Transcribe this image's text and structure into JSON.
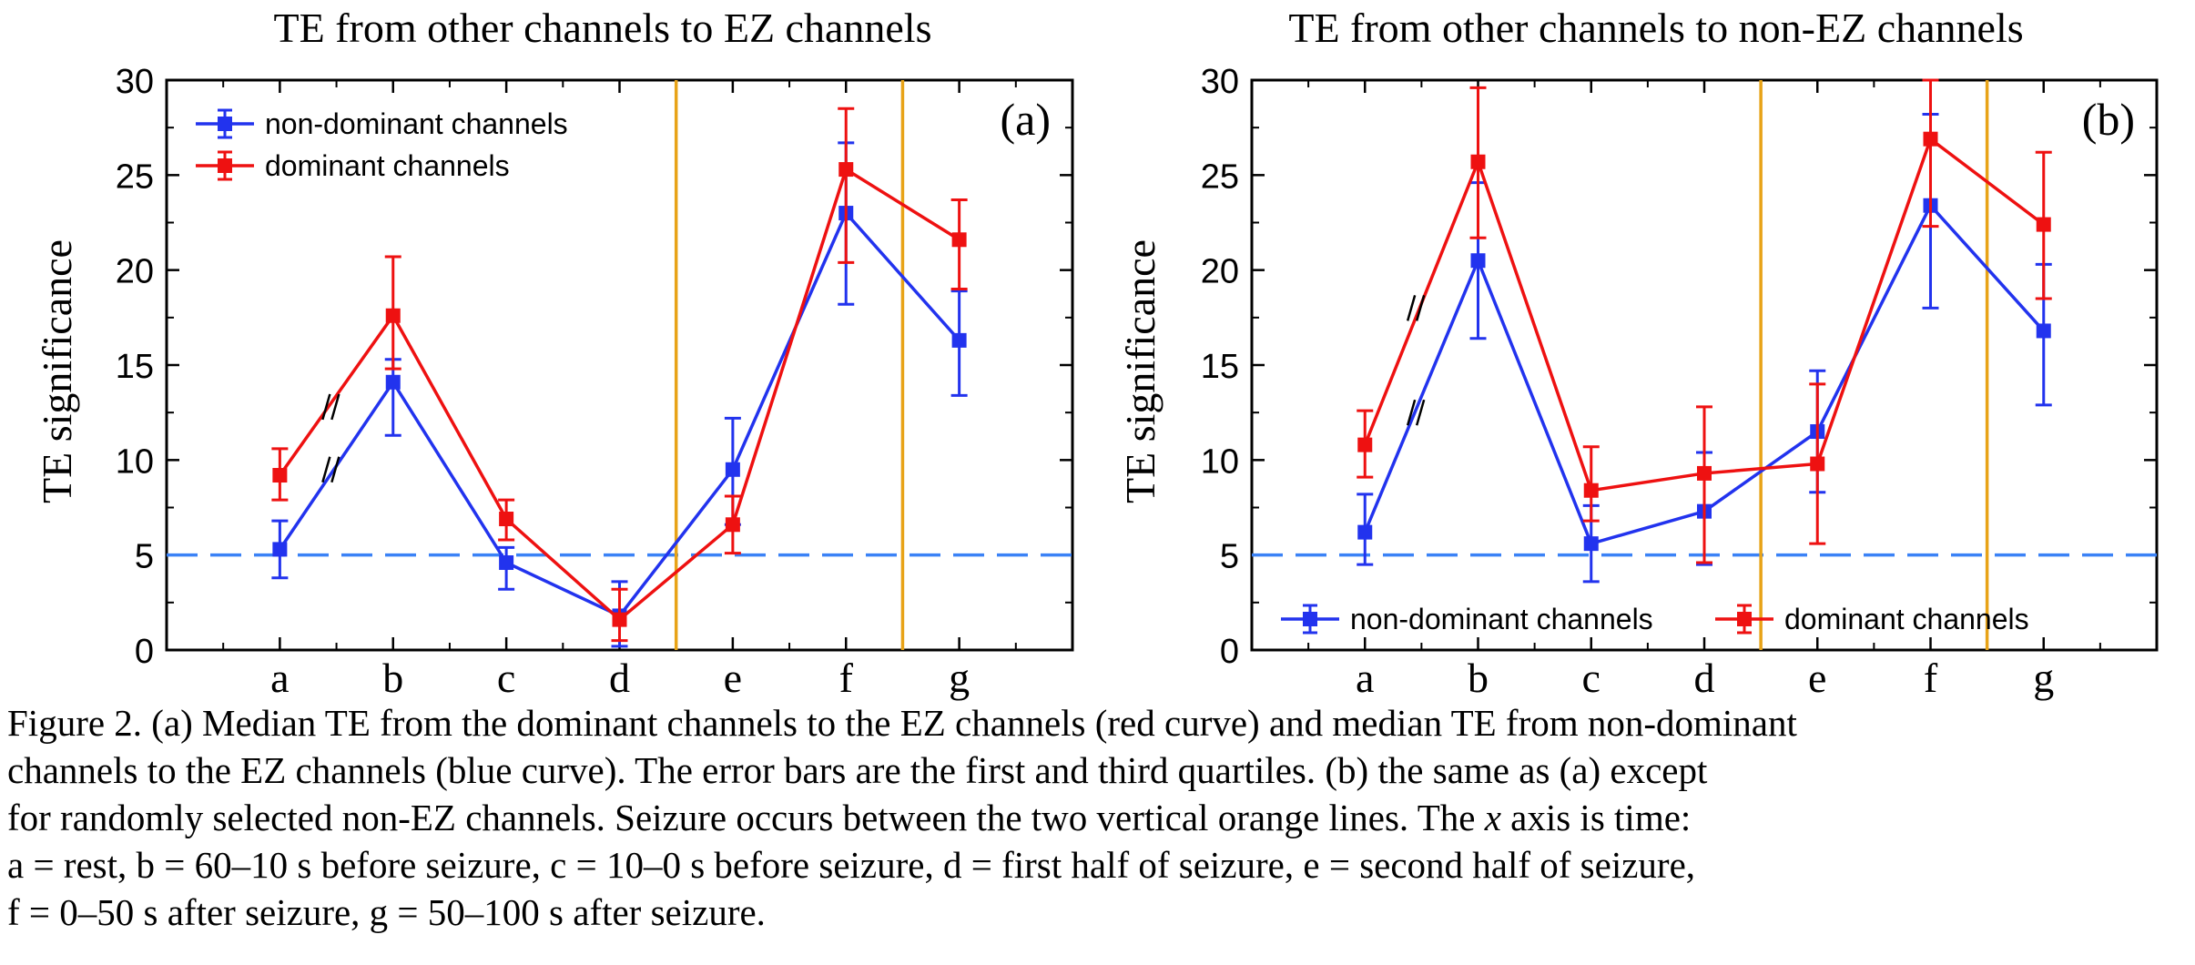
{
  "chart_data": [
    {
      "type": "line",
      "title": "TE from other channels to EZ channels",
      "panel_label": "(a)",
      "xlabel": "",
      "ylabel": "TE significance",
      "categories": [
        "a",
        "b",
        "c",
        "d",
        "e",
        "f",
        "g"
      ],
      "ylim": [
        0,
        30
      ],
      "yticks": [
        0,
        5,
        10,
        15,
        20,
        25,
        30
      ],
      "threshold": 5,
      "seizure_boundaries": [
        3.5,
        5.5
      ],
      "legend_position": "top-left",
      "legend_layout": "vertical",
      "break_marks": {
        "between_x": [
          1,
          2
        ],
        "series_y": [
          12.8,
          9.5
        ]
      },
      "series": [
        {
          "name": "dominant channels",
          "color": "#ee1111",
          "values": [
            9.2,
            17.6,
            6.9,
            1.6,
            6.6,
            25.3,
            21.6
          ],
          "q1": [
            7.9,
            14.8,
            5.8,
            0.5,
            5.1,
            20.4,
            19.0
          ],
          "q3": [
            10.6,
            20.7,
            7.9,
            3.2,
            8.1,
            28.5,
            23.7
          ]
        },
        {
          "name": "non-dominant channels",
          "color": "#2233ee",
          "values": [
            5.3,
            14.1,
            4.6,
            1.8,
            9.5,
            23.0,
            16.3
          ],
          "q1": [
            3.8,
            11.3,
            3.2,
            0.2,
            6.6,
            18.2,
            13.4
          ],
          "q3": [
            6.8,
            15.3,
            5.4,
            3.6,
            12.2,
            26.7,
            18.9
          ]
        }
      ]
    },
    {
      "type": "line",
      "title": "TE from other channels to non-EZ channels",
      "panel_label": "(b)",
      "xlabel": "",
      "ylabel": "TE significance",
      "categories": [
        "a",
        "b",
        "c",
        "d",
        "e",
        "f",
        "g"
      ],
      "ylim": [
        0,
        30
      ],
      "yticks": [
        0,
        5,
        10,
        15,
        20,
        25,
        30
      ],
      "threshold": 5,
      "seizure_boundaries": [
        3.5,
        5.5
      ],
      "legend_position": "bottom",
      "legend_layout": "horizontal",
      "break_marks": {
        "between_x": [
          1,
          2
        ],
        "series_y": [
          18.0,
          12.5
        ]
      },
      "series": [
        {
          "name": "dominant channels",
          "color": "#ee1111",
          "values": [
            10.8,
            25.7,
            8.4,
            9.3,
            9.8,
            26.9,
            22.4
          ],
          "q1": [
            9.1,
            21.7,
            6.8,
            4.6,
            5.6,
            22.3,
            18.5
          ],
          "q3": [
            12.6,
            29.6,
            10.7,
            12.8,
            14.0,
            30.0,
            26.2
          ]
        },
        {
          "name": "non-dominant channels",
          "color": "#2233ee",
          "values": [
            6.2,
            20.5,
            5.6,
            7.3,
            11.5,
            23.4,
            16.8
          ],
          "q1": [
            4.5,
            16.4,
            3.6,
            4.5,
            8.3,
            18.0,
            12.9
          ],
          "q3": [
            8.2,
            24.6,
            7.6,
            10.4,
            14.7,
            28.2,
            20.3
          ]
        }
      ]
    }
  ],
  "caption": {
    "line1": "Figure 2. (a) Median TE from the dominant channels to the EZ channels (red curve) and median TE from non-dominant",
    "line2": "channels to the EZ channels (blue curve). The error bars are the first and third quartiles. (b) the same as (a) except",
    "line3": "for randomly selected non-EZ channels. Seizure occurs between the two vertical orange lines. The",
    "line3_italic": "x",
    "line3_end": "axis is time:",
    "line4": "a = rest, b = 60–10 s before seizure, c = 10–0 s before seizure, d = first half of seizure, e = second half of seizure,",
    "line5": "f = 0–50 s after seizure, g = 50–100 s after seizure."
  },
  "colors": {
    "threshold_line": "#3b82f6",
    "seizure_line": "#e8a317",
    "axis": "#000000"
  }
}
